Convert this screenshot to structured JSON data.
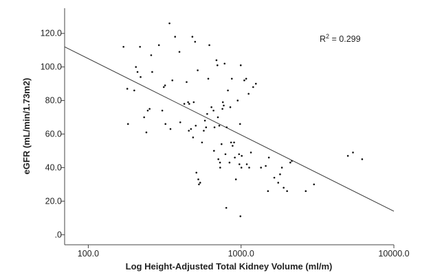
{
  "chart_data": {
    "type": "scatter",
    "title": "",
    "xlabel": "Log Height-Adjusted Total Kidney Volume (ml/m)",
    "ylabel": "eGFR (mL/min/1.73m2)",
    "x_scale": "log",
    "xlim": [
      70,
      10000
    ],
    "ylim": [
      -6,
      135
    ],
    "x_ticks": [
      100,
      1000,
      10000
    ],
    "x_tick_labels": [
      "100.0",
      "1000.0",
      "10000.0"
    ],
    "y_ticks": [
      0,
      20,
      40,
      60,
      80,
      100,
      120
    ],
    "y_tick_labels": [
      ".0",
      "20.0",
      "40.0",
      "60.0",
      "80.0",
      "100.0",
      "120.0"
    ],
    "grid": false,
    "annotation": {
      "prefix": "R",
      "sup": "2",
      "suffix": " = 0.299"
    },
    "fit_line": {
      "x": [
        70,
        10000
      ],
      "y": [
        112,
        14
      ]
    },
    "points": [
      [
        170,
        112
      ],
      [
        180,
        87
      ],
      [
        182,
        66
      ],
      [
        200,
        86
      ],
      [
        205,
        100
      ],
      [
        210,
        97
      ],
      [
        218,
        112
      ],
      [
        220,
        94
      ],
      [
        232,
        70
      ],
      [
        240,
        61
      ],
      [
        245,
        74
      ],
      [
        252,
        75
      ],
      [
        258,
        107
      ],
      [
        262,
        97
      ],
      [
        290,
        113
      ],
      [
        305,
        74
      ],
      [
        312,
        88
      ],
      [
        318,
        89
      ],
      [
        320,
        66
      ],
      [
        340,
        126
      ],
      [
        345,
        63
      ],
      [
        355,
        92
      ],
      [
        370,
        118
      ],
      [
        395,
        109
      ],
      [
        400,
        67
      ],
      [
        425,
        78
      ],
      [
        440,
        91
      ],
      [
        450,
        79
      ],
      [
        455,
        62
      ],
      [
        458,
        78
      ],
      [
        470,
        63
      ],
      [
        480,
        118
      ],
      [
        485,
        58
      ],
      [
        490,
        79
      ],
      [
        500,
        115
      ],
      [
        505,
        65
      ],
      [
        510,
        37
      ],
      [
        520,
        98
      ],
      [
        525,
        33
      ],
      [
        530,
        30
      ],
      [
        540,
        31
      ],
      [
        555,
        55
      ],
      [
        570,
        62
      ],
      [
        580,
        68
      ],
      [
        590,
        64
      ],
      [
        600,
        72
      ],
      [
        610,
        93
      ],
      [
        620,
        113
      ],
      [
        640,
        76
      ],
      [
        660,
        74
      ],
      [
        665,
        50
      ],
      [
        670,
        64
      ],
      [
        690,
        104
      ],
      [
        700,
        101
      ],
      [
        705,
        70
      ],
      [
        710,
        45
      ],
      [
        720,
        65
      ],
      [
        728,
        43
      ],
      [
        730,
        40
      ],
      [
        745,
        54
      ],
      [
        755,
        75
      ],
      [
        760,
        79
      ],
      [
        770,
        77
      ],
      [
        780,
        102
      ],
      [
        790,
        48
      ],
      [
        800,
        16
      ],
      [
        805,
        64
      ],
      [
        820,
        86
      ],
      [
        840,
        43
      ],
      [
        850,
        76
      ],
      [
        860,
        55
      ],
      [
        870,
        93
      ],
      [
        880,
        53
      ],
      [
        900,
        55
      ],
      [
        910,
        46
      ],
      [
        925,
        33
      ],
      [
        950,
        80
      ],
      [
        970,
        48
      ],
      [
        975,
        42
      ],
      [
        985,
        66
      ],
      [
        990,
        11
      ],
      [
        995,
        101
      ],
      [
        1005,
        40
      ],
      [
        1010,
        47
      ],
      [
        1050,
        92
      ],
      [
        1080,
        93
      ],
      [
        1090,
        42
      ],
      [
        1120,
        84
      ],
      [
        1130,
        40
      ],
      [
        1160,
        49
      ],
      [
        1200,
        88
      ],
      [
        1250,
        90
      ],
      [
        1350,
        40
      ],
      [
        1450,
        41
      ],
      [
        1500,
        26
      ],
      [
        1520,
        46
      ],
      [
        1650,
        34
      ],
      [
        1750,
        31
      ],
      [
        1800,
        36
      ],
      [
        1850,
        40
      ],
      [
        1900,
        28
      ],
      [
        2000,
        26
      ],
      [
        2100,
        43
      ],
      [
        2150,
        44
      ],
      [
        2650,
        26
      ],
      [
        3000,
        30
      ],
      [
        5000,
        47
      ],
      [
        5400,
        49
      ],
      [
        6200,
        45
      ]
    ]
  }
}
